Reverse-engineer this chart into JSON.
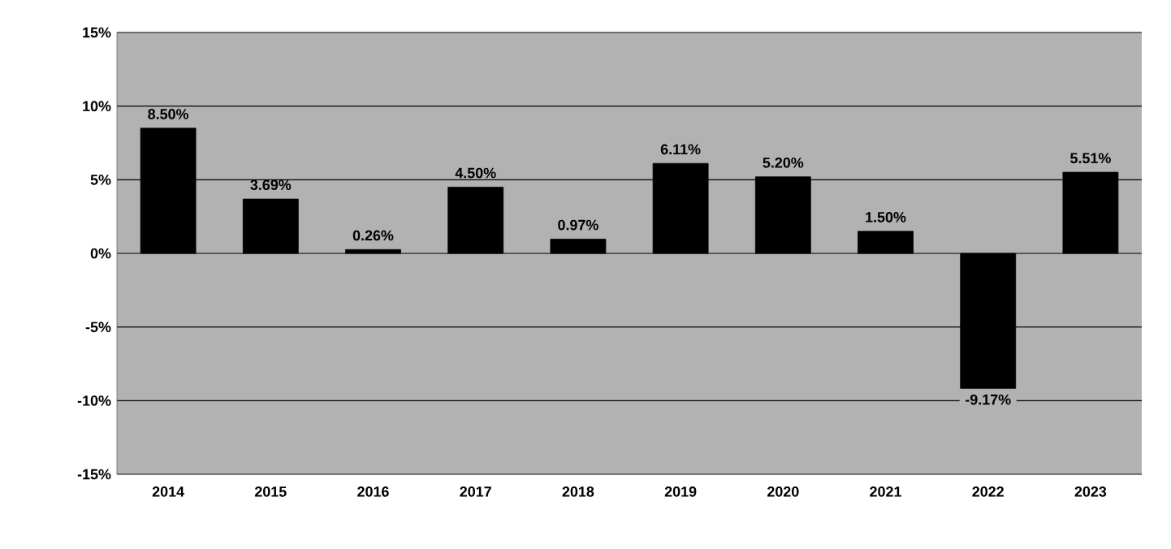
{
  "chart_data": {
    "type": "bar",
    "categories": [
      "2014",
      "2015",
      "2016",
      "2017",
      "2018",
      "2019",
      "2020",
      "2021",
      "2022",
      "2023"
    ],
    "values": [
      8.5,
      3.69,
      0.26,
      4.5,
      0.97,
      6.11,
      5.2,
      1.5,
      -9.17,
      5.51
    ],
    "value_labels": [
      "8.50%",
      "3.69%",
      "0.26%",
      "4.50%",
      "0.97%",
      "6.11%",
      "5.20%",
      "1.50%",
      "-9.17%",
      "5.51%"
    ],
    "color": "#000000",
    "ylim": [
      -15,
      15
    ],
    "yticks": [
      {
        "value": -15,
        "label": "-15%"
      },
      {
        "value": -10,
        "label": "-10%"
      },
      {
        "value": -5,
        "label": "-5%"
      },
      {
        "value": 0,
        "label": "0%"
      },
      {
        "value": 5,
        "label": "5%"
      },
      {
        "value": 10,
        "label": "10%"
      },
      {
        "value": 15,
        "label": "15%"
      }
    ],
    "grid": "y"
  }
}
